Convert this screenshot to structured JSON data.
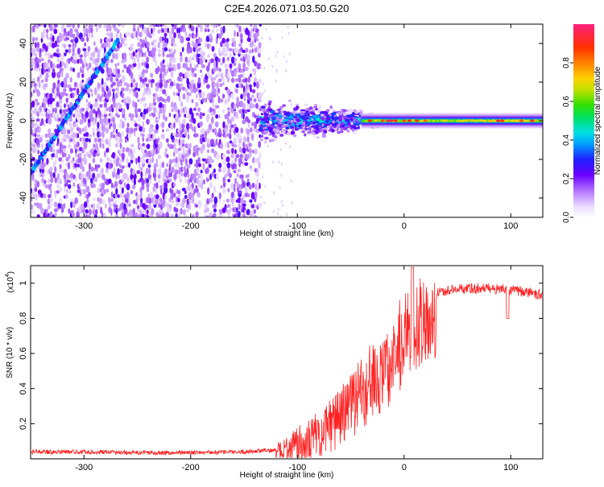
{
  "figure": {
    "title": "C2E4.2026.071.03.50.G20"
  },
  "chart_data": [
    {
      "type": "heatmap",
      "title": "C2E4.2026.071.03.50.G20",
      "xlabel": "Height of straight line (km)",
      "ylabel": "Frequency (Hz)",
      "xlim": [
        -350,
        130
      ],
      "ylim": [
        -50,
        50
      ],
      "xticks": [
        -300,
        -200,
        -100,
        0,
        100
      ],
      "yticks": [
        -40,
        -20,
        0,
        20,
        40
      ],
      "colorbar": {
        "label": "Normalized spectral amplitude",
        "range": [
          0,
          1
        ],
        "ticks": [
          0.0,
          0.2,
          0.4,
          0.6,
          0.8
        ],
        "tick_labels": [
          "0.0",
          "0.2",
          "0.4",
          "0.6",
          "0.8"
        ]
      },
      "features": {
        "noise_region_x": [
          -350,
          -135
        ],
        "diagonal_trace": {
          "x": [
            -350,
            -268
          ],
          "y": [
            -27,
            42
          ],
          "amplitude": 0.4
        },
        "carrier_line": {
          "x": [
            -135,
            130
          ],
          "y": 0,
          "peak_amplitude": 0.95
        },
        "broadband_cloud": {
          "x": [
            -135,
            -40
          ],
          "y_spread": 9,
          "amplitude": 0.35
        }
      }
    },
    {
      "type": "line",
      "xlabel": "Height of straight line (km)",
      "ylabel": "SNR (10 * v/v)",
      "ylabel_scale": "(x10",
      "ylabel_scale_exp": "4",
      "xlim": [
        -350,
        130
      ],
      "ylim": [
        0,
        1.1
      ],
      "xticks": [
        -300,
        -200,
        -100,
        0,
        100
      ],
      "yticks": [
        0.2,
        0.4,
        0.6,
        0.8,
        1.0
      ],
      "series": [
        {
          "name": "SNR",
          "color": "#ff2222",
          "x": [
            -350,
            -300,
            -250,
            -200,
            -150,
            -120,
            -100,
            -80,
            -60,
            -40,
            -30,
            -20,
            -10,
            0,
            10,
            20,
            30,
            40,
            60,
            80,
            100,
            115,
            130
          ],
          "y": [
            0.04,
            0.04,
            0.035,
            0.035,
            0.04,
            0.05,
            0.12,
            0.2,
            0.3,
            0.45,
            0.55,
            0.6,
            0.7,
            0.78,
            0.85,
            0.9,
            0.94,
            0.96,
            0.97,
            0.97,
            0.96,
            0.95,
            0.93
          ]
        }
      ]
    }
  ]
}
